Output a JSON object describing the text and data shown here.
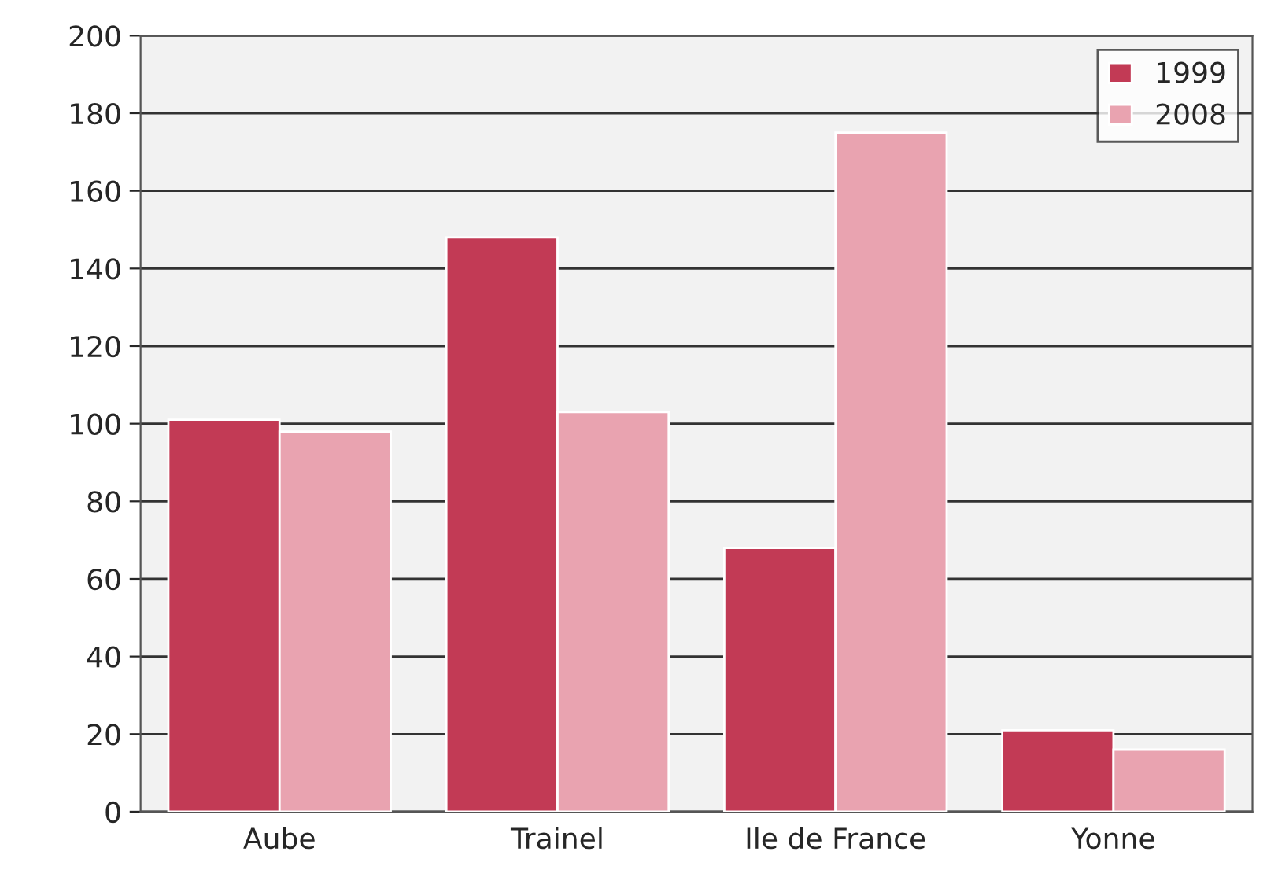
{
  "chart_data": {
    "type": "bar",
    "categories": [
      "Aube",
      "Trainel",
      "Ile de France",
      "Yonne"
    ],
    "series": [
      {
        "name": "1999",
        "color": "#c23a55",
        "values": [
          101,
          148,
          68,
          21
        ]
      },
      {
        "name": "2008",
        "color": "#e9a3b0",
        "values": [
          98,
          103,
          175,
          16
        ]
      }
    ],
    "ylim": [
      0,
      200
    ],
    "yticks": [
      0,
      20,
      40,
      60,
      80,
      100,
      120,
      140,
      160,
      180,
      200
    ],
    "grid": "y",
    "legend": "top right"
  }
}
